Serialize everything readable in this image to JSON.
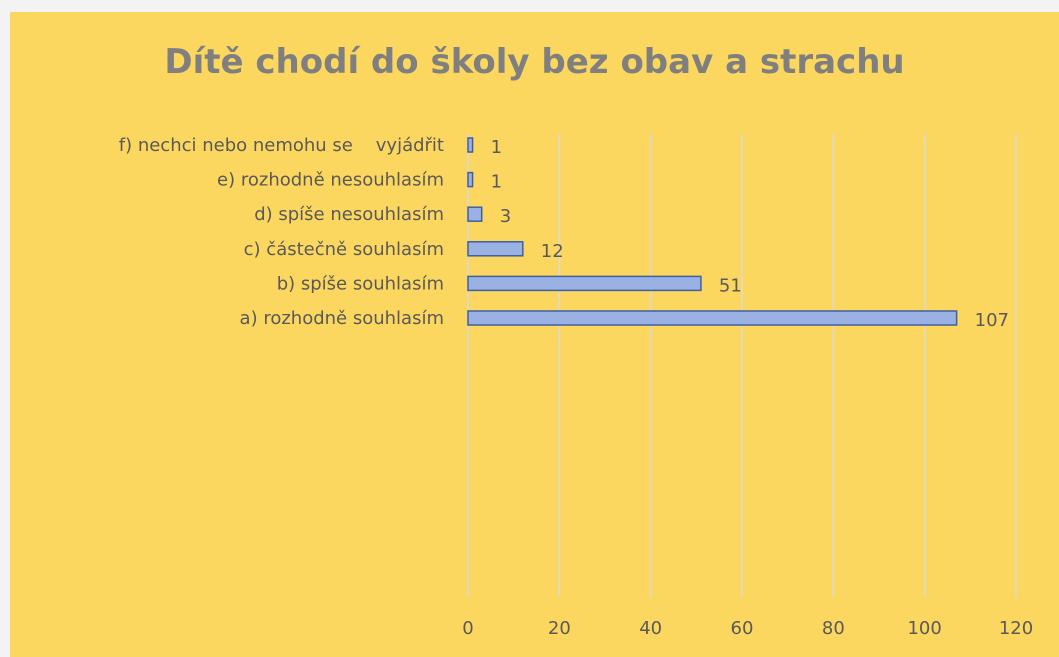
{
  "colors": {
    "chart_background": "#fcd75f",
    "bar_fill": "#9ab2e3",
    "bar_border": "#3f5f9f",
    "title_color": "#7f7f7f",
    "text_color": "#595959",
    "grid_color": "#d9d9d9"
  },
  "chart_data": {
    "type": "bar",
    "orientation": "horizontal",
    "title": "Dítě chodí do školy bez obav a strachu",
    "xlabel": "",
    "ylabel": "",
    "categories": [
      "a) rozhodně souhlasím",
      "b) spíše souhlasím",
      "c) částečně souhlasím",
      "d) spíše nesouhlasím",
      "e) rozhodně nesouhlasím",
      "f) nechci nebo nemohu se    vyjádřit"
    ],
    "values": [
      107,
      51,
      12,
      3,
      1,
      1
    ],
    "xlim": [
      0,
      120
    ],
    "xticks": [
      0,
      20,
      40,
      60,
      80,
      100,
      120
    ],
    "grid": true,
    "legend": "none",
    "data_labels": true
  }
}
